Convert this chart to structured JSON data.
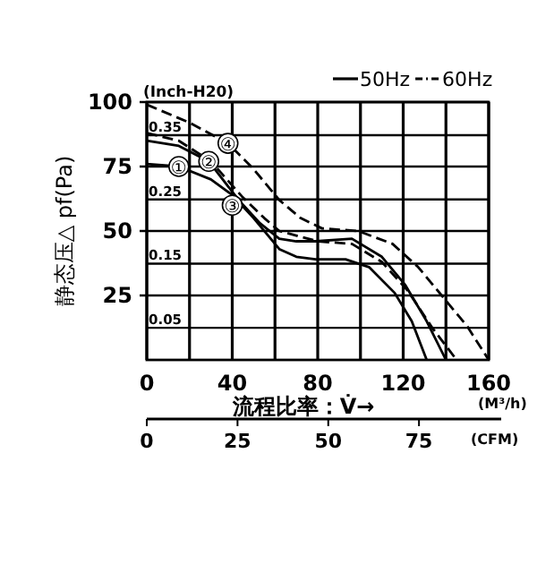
{
  "chart_data": {
    "type": "line",
    "xlabel": "流程比率：V̇→",
    "ylabel": "静态压△ pf(Pa)",
    "y2label": "(Inch-H20)",
    "x2label": "(CFM)",
    "xlim": [
      0,
      160
    ],
    "ylim": [
      0,
      100
    ],
    "xticks": [
      0,
      {
        "value": 20,
        "label": null
      },
      40,
      {
        "value": 60,
        "label": null
      },
      80,
      {
        "value": 100,
        "label": null
      },
      120,
      {
        "value": 140,
        "label": null
      },
      160
    ],
    "yticks": [
      25,
      50,
      75,
      100
    ],
    "y2lim": [
      0,
      0.4016
    ],
    "y2ticks": [
      0.05,
      0.15,
      0.25,
      0.35
    ],
    "x2lim": [
      0,
      94.2
    ],
    "x2ticks": [
      0,
      25,
      50,
      75
    ],
    "grid": true,
    "legend": "top right",
    "marker": "none",
    "series": [
      {
        "name": "50Hz",
        "color": "#000000",
        "line_style": "solid",
        "x": [
          0,
          15,
          30,
          40,
          50,
          62,
          70,
          79,
          93,
          104,
          116,
          124,
          131
        ],
        "values": [
          76,
          75,
          70,
          64,
          55,
          43,
          40,
          39,
          39,
          36,
          26,
          15,
          0
        ]
      },
      {
        "color": "#000000",
        "line_style": "solid",
        "x": [
          0,
          15,
          29,
          43,
          53,
          62,
          70,
          79,
          96,
          110,
          121,
          131,
          140
        ],
        "values": [
          85,
          83,
          77,
          62,
          53,
          47,
          46,
          46,
          47,
          40,
          29,
          15,
          0
        ]
      },
      {
        "name": "60Hz",
        "color": "#000000",
        "line_style": "dashed",
        "x": [
          0,
          15,
          30,
          45,
          55,
          62,
          80,
          96,
          110,
          122,
          134,
          145
        ],
        "values": [
          88,
          85,
          77,
          63,
          55,
          50,
          46,
          45,
          38,
          27,
          12,
          0
        ]
      },
      {
        "color": "#000000",
        "line_style": "dashed",
        "x": [
          0,
          20,
          38,
          50,
          62,
          72,
          82,
          99,
          115,
          127,
          138,
          150,
          160
        ],
        "values": [
          99,
          92,
          84,
          74,
          62,
          55,
          51,
          50,
          45,
          36,
          25,
          13,
          0
        ]
      }
    ],
    "annotations": [
      {
        "text": "①",
        "x": 15,
        "y": 75
      },
      {
        "text": "②",
        "x": 29,
        "y": 77
      },
      {
        "text": "④",
        "x": 38,
        "y": 84
      },
      {
        "text": "③",
        "x": 40,
        "y": 60
      },
      "(M³/h)"
    ]
  }
}
